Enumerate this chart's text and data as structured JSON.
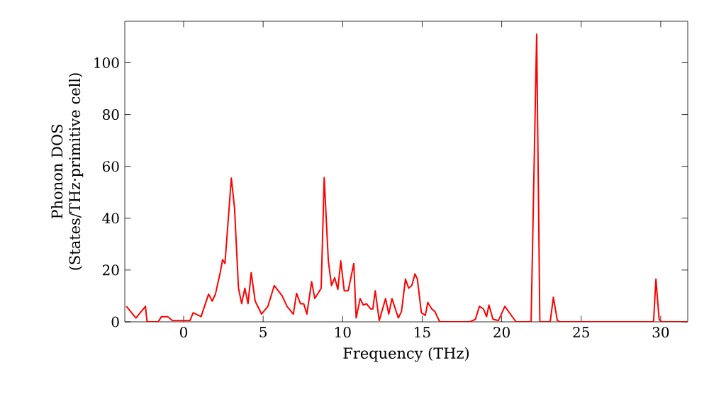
{
  "chart_data": {
    "type": "line",
    "xlabel": "Frequency (THz)",
    "ylabel": "Phonon DOS (States/THz·primitive cell)",
    "xlim": [
      -3.7,
      31.7
    ],
    "ylim": [
      0,
      116
    ],
    "xticks": [
      0,
      5,
      10,
      15,
      20,
      25,
      30
    ],
    "yticks": [
      0,
      20,
      40,
      60,
      80,
      100
    ],
    "marker": "none",
    "line_style": "solid",
    "series": [
      {
        "color": "#ff0000",
        "x": [
          -3.6,
          -3.0,
          -2.4,
          -2.3,
          -1.6,
          -1.4,
          -1.0,
          -0.7,
          0.4,
          0.6,
          1.1,
          1.57,
          1.8,
          2.0,
          2.3,
          2.45,
          2.6,
          3.0,
          3.2,
          3.45,
          3.65,
          3.85,
          4.05,
          4.25,
          4.5,
          4.9,
          5.3,
          5.7,
          6.2,
          6.5,
          6.9,
          7.1,
          7.35,
          7.55,
          7.75,
          8.05,
          8.25,
          8.65,
          8.84,
          9.1,
          9.3,
          9.5,
          9.7,
          9.88,
          10.1,
          10.35,
          10.7,
          10.85,
          11.1,
          11.3,
          11.5,
          11.75,
          11.9,
          12.05,
          12.3,
          12.7,
          12.9,
          13.1,
          13.5,
          13.7,
          13.95,
          14.15,
          14.35,
          14.55,
          14.7,
          14.95,
          15.2,
          15.35,
          15.6,
          15.8,
          16.1,
          18.0,
          18.35,
          18.6,
          18.85,
          19.05,
          19.2,
          19.45,
          19.8,
          20.2,
          20.55,
          20.9,
          21.85,
          22.2,
          22.4,
          23.05,
          23.25,
          23.5,
          23.65,
          29.55,
          29.7,
          29.9,
          30.05,
          31.7
        ],
        "values": [
          6,
          1.5,
          6,
          0,
          0,
          2,
          2,
          0.5,
          0.5,
          3.5,
          2,
          10.7,
          8,
          10.7,
          19,
          24,
          22.5,
          55.5,
          44,
          13,
          7,
          13,
          7,
          19,
          8,
          3,
          6,
          14,
          10,
          6,
          3,
          11,
          7,
          7,
          3,
          15.5,
          9,
          13,
          55.7,
          23.5,
          14,
          17,
          12.5,
          23.5,
          12,
          12,
          22.5,
          1.5,
          9,
          6.5,
          7,
          5,
          5,
          12,
          0.5,
          9,
          3,
          9,
          1.5,
          4,
          16.5,
          13,
          14,
          18.5,
          16.5,
          3.5,
          2.5,
          7.5,
          5,
          4,
          0,
          0,
          1,
          6,
          5,
          2,
          6.5,
          1,
          0.5,
          6,
          3,
          0,
          0,
          111,
          0,
          0,
          9.5,
          0.5,
          0,
          0,
          16.5,
          1,
          0,
          0
        ]
      }
    ]
  }
}
